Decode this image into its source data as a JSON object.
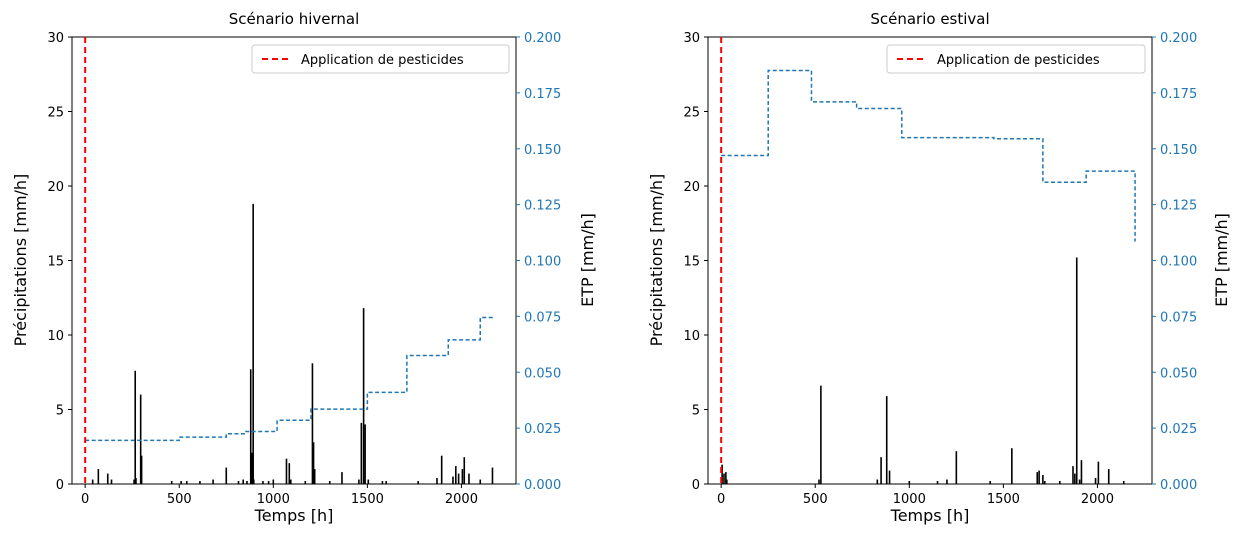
{
  "colors": {
    "precip": "#000000",
    "etp": "#1f77b4",
    "etp_axis": "#1f77b4",
    "pesticide": "#ff0000"
  },
  "chart_data": [
    {
      "type": "bar",
      "title": "Scénario hivernal",
      "xlabel": "Temps [h]",
      "ylabel": "Précipitations [mm/h]",
      "y2label": "ETP [mm/h]",
      "xlim": [
        -70,
        2290
      ],
      "ylim": [
        0,
        30
      ],
      "y2lim": [
        0,
        0.2
      ],
      "xticks": [
        0,
        500,
        1000,
        1500,
        2000
      ],
      "yticks": [
        0,
        5,
        10,
        15,
        20,
        25,
        30
      ],
      "y2ticks": [
        "0.000",
        "0.025",
        "0.050",
        "0.075",
        "0.100",
        "0.125",
        "0.150",
        "0.175",
        "0.200"
      ],
      "legend": {
        "label": "Application de pesticides",
        "position": "top-right"
      },
      "pesticide_application_x": 0,
      "precip": {
        "x": [
          40,
          70,
          120,
          140,
          260,
          266,
          270,
          295,
          300,
          460,
          510,
          540,
          610,
          680,
          750,
          815,
          840,
          860,
          880,
          888,
          893,
          896,
          945,
          975,
          1000,
          1070,
          1085,
          1093,
          1170,
          1208,
          1214,
          1220,
          1300,
          1365,
          1455,
          1468,
          1480,
          1488,
          1505,
          1580,
          1600,
          1770,
          1870,
          1895,
          1955,
          1970,
          1985,
          2005,
          2015,
          2040,
          2100,
          2165
        ],
        "values": [
          0.3,
          1.0,
          0.7,
          0.3,
          0.3,
          7.6,
          0.4,
          6.0,
          1.9,
          0.2,
          0.2,
          0.2,
          0.2,
          0.3,
          1.1,
          0.2,
          0.3,
          0.2,
          7.7,
          2.1,
          18.8,
          0.3,
          0.2,
          0.2,
          0.3,
          1.7,
          1.4,
          0.3,
          0.2,
          8.1,
          2.8,
          1.0,
          0.2,
          0.8,
          0.3,
          4.1,
          11.8,
          4.0,
          0.3,
          0.2,
          0.2,
          0.2,
          0.4,
          1.9,
          0.5,
          1.2,
          0.7,
          1.0,
          1.8,
          0.7,
          0.3,
          1.1
        ]
      },
      "etp": {
        "x": [
          0,
          400,
          500,
          750,
          850,
          1020,
          1200,
          1350,
          1500,
          1710,
          1930,
          2100,
          2170
        ],
        "values": [
          0.0195,
          0.0195,
          0.021,
          0.0225,
          0.0235,
          0.0285,
          0.0335,
          0.0335,
          0.041,
          0.0575,
          0.0645,
          0.0745,
          0.0745
        ]
      }
    },
    {
      "type": "bar",
      "title": "Scénario estival",
      "xlabel": "Temps [h]",
      "ylabel": "Précipitations [mm/h]",
      "y2label": "ETP [mm/h]",
      "xlim": [
        -70,
        2290
      ],
      "ylim": [
        0,
        30
      ],
      "y2lim": [
        0,
        0.2
      ],
      "xticks": [
        0,
        500,
        1000,
        1500,
        2000
      ],
      "yticks": [
        0,
        5,
        10,
        15,
        20,
        25,
        30
      ],
      "y2ticks": [
        "0.000",
        "0.025",
        "0.050",
        "0.075",
        "0.100",
        "0.125",
        "0.150",
        "0.175",
        "0.200"
      ],
      "legend": {
        "label": "Application de pesticides",
        "position": "top-right"
      },
      "pesticide_application_x": 0,
      "precip": {
        "x": [
          5,
          15,
          25,
          30,
          520,
          530,
          830,
          850,
          880,
          895,
          1000,
          1150,
          1200,
          1250,
          1430,
          1545,
          1680,
          1690,
          1710,
          1720,
          1800,
          1870,
          1880,
          1890,
          1905,
          1915,
          1990,
          2005,
          2060,
          2140
        ],
        "values": [
          1.3,
          0.7,
          0.8,
          0.3,
          0.3,
          6.6,
          0.3,
          1.8,
          5.9,
          0.9,
          0.2,
          0.2,
          0.3,
          2.2,
          0.2,
          2.4,
          0.8,
          0.9,
          0.6,
          0.2,
          0.2,
          1.2,
          0.7,
          15.2,
          0.3,
          1.6,
          0.4,
          1.5,
          1.0,
          0.2
        ]
      },
      "etp": {
        "x": [
          0,
          250,
          480,
          720,
          960,
          1450,
          1710,
          1940,
          2200
        ],
        "values": [
          0.147,
          0.185,
          0.171,
          0.168,
          0.155,
          0.1545,
          0.135,
          0.14,
          0.1085
        ]
      }
    }
  ]
}
